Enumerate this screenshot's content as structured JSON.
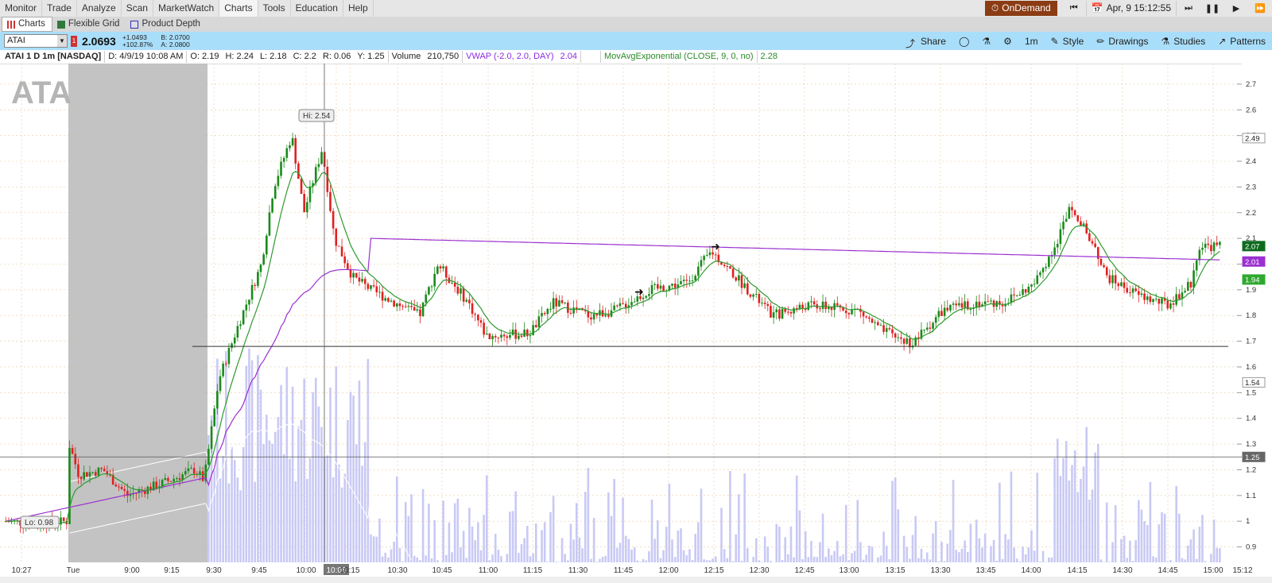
{
  "menu": {
    "items": [
      "Monitor",
      "Trade",
      "Analyze",
      "Scan",
      "MarketWatch",
      "Charts",
      "Tools",
      "Education",
      "Help"
    ],
    "active": "Charts",
    "ondemand_label": "OnDemand",
    "datetime": "Apr, 9 15:12:55"
  },
  "subtabs": [
    "Charts",
    "Flexible Grid",
    "Product Depth"
  ],
  "toolbar": {
    "symbol": "ATAI",
    "last": "2.0693",
    "change": "+1.0493",
    "change_pct": "+102.87%",
    "bid": "B: 2.0700",
    "ask": "A: 2.0800",
    "share": "Share",
    "interval": "1m",
    "style": "Style",
    "drawings": "Drawings",
    "studies": "Studies",
    "patterns": "Patterns"
  },
  "infobar": {
    "symbol": "ATAI 1 D 1m [NASDAQ]",
    "date": "D: 4/9/19 10:08 AM",
    "open": "O: 2.19",
    "high": "H: 2.24",
    "low": "L: 2.18",
    "close": "C: 2.2",
    "range": "R: 0.06",
    "y": "Y: 1.25",
    "volume_label": "Volume",
    "volume": "210,750",
    "vwap_label": "VWAP (-2.0, 2.0, DAY)",
    "vwap_value": "2.04",
    "ema_label": "MovAvgExponential (CLOSE, 9, 0, no)",
    "ema_value": "2.28"
  },
  "chart_data": {
    "type": "candlestick",
    "watermark": "ATA",
    "y_ticks": [
      "2.7",
      "2.6",
      "2.5",
      "2.4",
      "2.3",
      "2.2",
      "2.1",
      "2",
      "1.9",
      "1.8",
      "1.7",
      "1.6",
      "1.5",
      "1.4",
      "1.3",
      "1.2",
      "1.1",
      "1",
      "0.9"
    ],
    "y_range": [
      0.84,
      2.78
    ],
    "x_ticks": [
      "10:27",
      "Tue",
      "9:00",
      "9:15",
      "9:30",
      "9:45",
      "10:00",
      "10:08",
      "10:15",
      "10:30",
      "10:45",
      "11:00",
      "11:15",
      "11:30",
      "11:45",
      "12:00",
      "12:15",
      "12:30",
      "12:45",
      "13:00",
      "13:15",
      "13:30",
      "13:45",
      "14:00",
      "14:15",
      "14:30",
      "14:45",
      "15:00",
      "15:12"
    ],
    "cursor_time": "10:08",
    "hi_label": "Hi: 2.54",
    "lo_label": "Lo: 0.98",
    "price_tags": [
      {
        "value": "2.49",
        "style": "outline"
      },
      {
        "value": "2.07",
        "style": "darkgreen"
      },
      {
        "value": "2.01",
        "style": "purple"
      },
      {
        "value": "1.94",
        "style": "green"
      },
      {
        "value": "1.54",
        "style": "outline"
      },
      {
        "value": "1.25",
        "style": "gray"
      }
    ],
    "support_line": 1.68,
    "cursor_price": 1.25,
    "colors": {
      "up": "#1a8a1a",
      "down": "#e02020",
      "vwap": "#9b30d0",
      "ema": "#2e9a2e",
      "volume": "#c9c9f5",
      "premarket": "#bdbdbd"
    }
  }
}
